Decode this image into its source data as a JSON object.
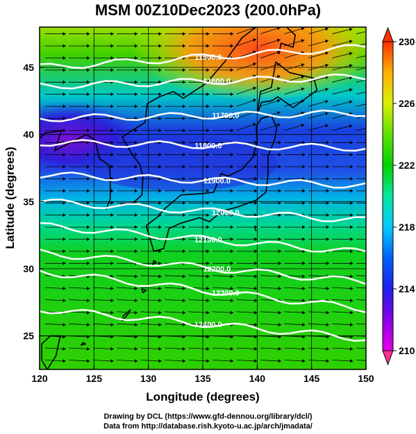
{
  "title": "MSM 00Z10Dec2023 (200.0hPa)",
  "x_axis": {
    "label": "Longitude (degrees)",
    "ticks": [
      "120",
      "125",
      "130",
      "135",
      "140",
      "145",
      "150"
    ]
  },
  "y_axis": {
    "label": "Latitude  (degrees)",
    "ticks": [
      "25",
      "30",
      "35",
      "40",
      "45"
    ]
  },
  "colorbar": {
    "ticks": [
      "210",
      "214",
      "218",
      "222",
      "226",
      "230"
    ],
    "min": 210,
    "max": 230
  },
  "contours": {
    "color": "#ffffff",
    "levels": [
      {
        "label": "11500.0",
        "value": 11500,
        "lat_west": 45.0,
        "lat_east": 46.5
      },
      {
        "label": "11600.0",
        "value": 11600,
        "lat_west": 43.6,
        "lat_east": 44.3
      },
      {
        "label": "11700.0",
        "value": 11700,
        "lat_west": 41.2,
        "lat_east": 41.6
      },
      {
        "label": "11800.0",
        "value": 11800,
        "lat_west": 39.4,
        "lat_east": 39.0
      },
      {
        "label": "11900.0",
        "value": 11900,
        "lat_west": 37.0,
        "lat_east": 36.2
      },
      {
        "label": "12000.0",
        "value": 12000,
        "lat_west": 35.0,
        "lat_east": 33.6
      },
      {
        "label": "12100.0",
        "value": 12100,
        "lat_west": 33.2,
        "lat_east": 31.2
      },
      {
        "label": "12200.0",
        "value": 12200,
        "lat_west": 31.2,
        "lat_east": 29.0
      },
      {
        "label": "12300.0",
        "value": 12300,
        "lat_west": 29.8,
        "lat_east": 27.0
      },
      {
        "label": "12400.0",
        "value": 12400,
        "lat_west": 27.0,
        "lat_east": 24.8
      }
    ]
  },
  "wind_vectors": {
    "color": "#000000",
    "direction": "westerly"
  },
  "credits": [
    "Drawing by DCL (https://www.gfd-dennou.org/library/dcl/)",
    "Data from http://database.rish.kyoto-u.ac.jp/arch/jmadata/"
  ]
}
